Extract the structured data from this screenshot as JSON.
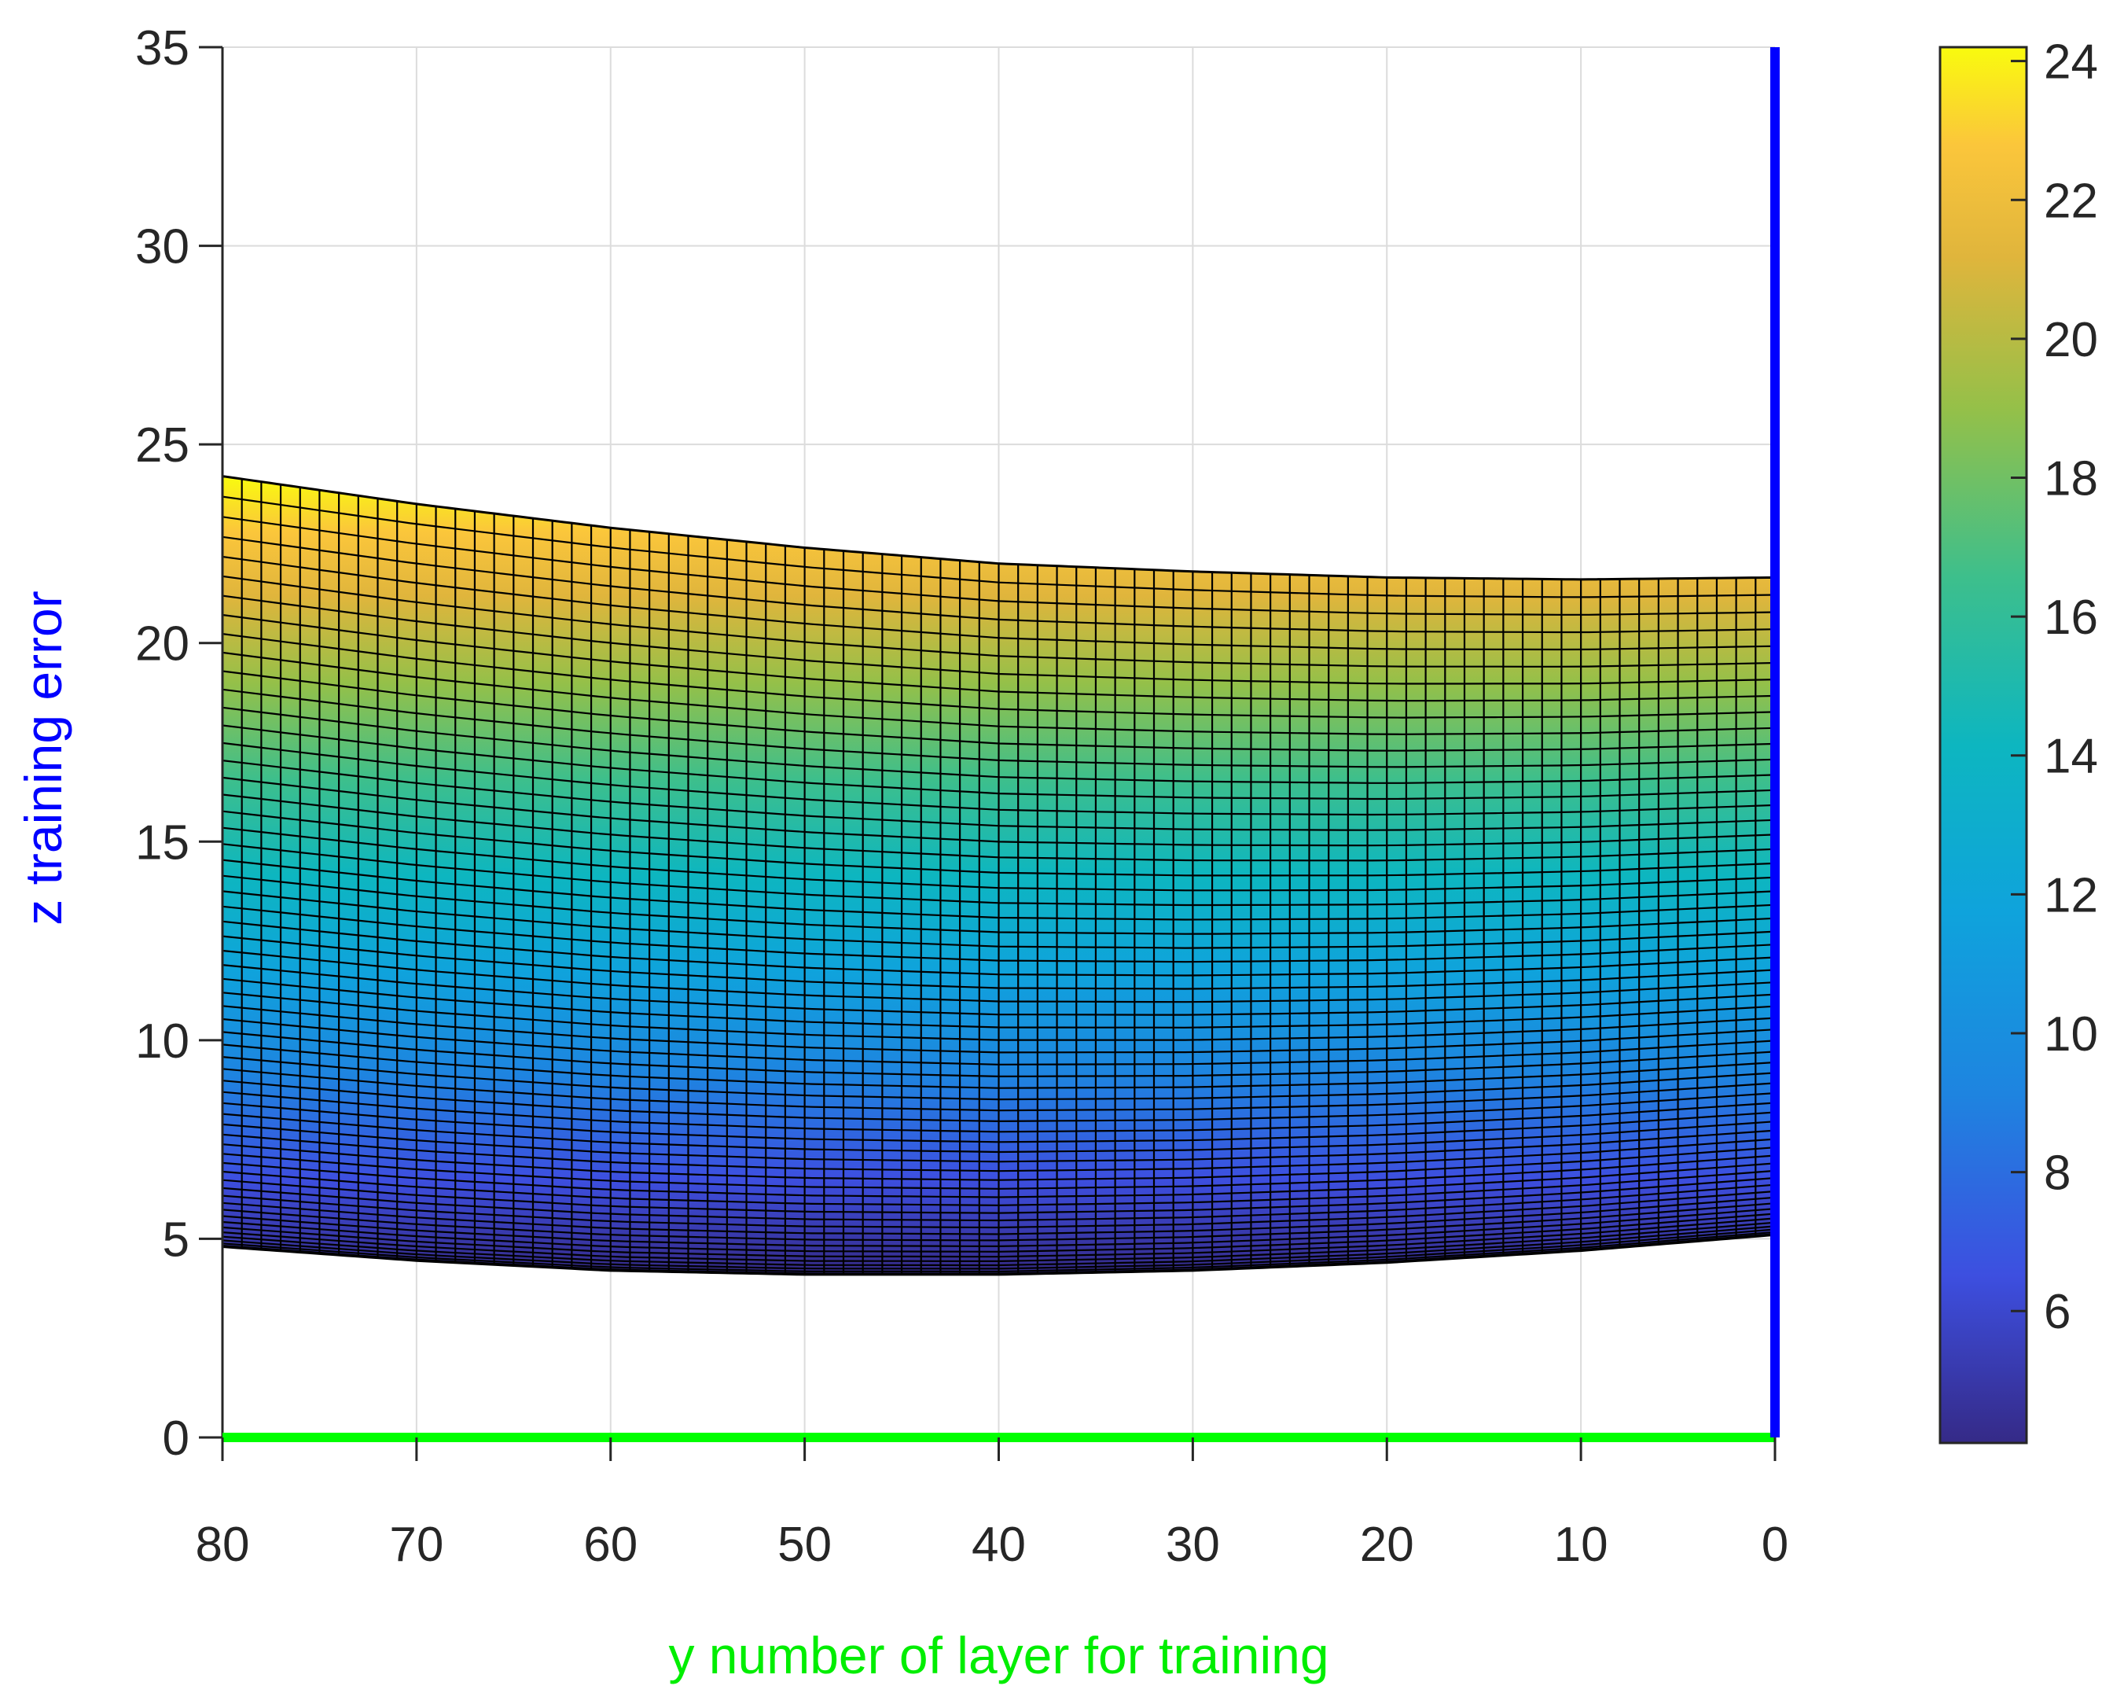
{
  "chart_data": {
    "type": "surface",
    "view": "side projection (y vs z)",
    "xlabel": "y number of layer for training",
    "ylabel": "z training error",
    "xlim": [
      80,
      0
    ],
    "ylim": [
      0,
      35
    ],
    "xticks": [
      "80",
      "70",
      "60",
      "50",
      "40",
      "30",
      "20",
      "10",
      "0"
    ],
    "yticks": [
      "0",
      "5",
      "10",
      "15",
      "20",
      "25",
      "30",
      "35"
    ],
    "grid": true,
    "surface_top_edge": {
      "y": [
        80,
        70,
        60,
        50,
        40,
        30,
        20,
        10,
        0
      ],
      "z": [
        24.2,
        23.5,
        22.9,
        22.4,
        22.0,
        21.8,
        21.65,
        21.6,
        21.65
      ]
    },
    "surface_bottom_edge": {
      "y": [
        80,
        70,
        60,
        50,
        40,
        30,
        20,
        10,
        0
      ],
      "z": [
        4.8,
        4.45,
        4.2,
        4.1,
        4.1,
        4.2,
        4.4,
        4.7,
        5.1
      ]
    },
    "colorbar": {
      "min": 4.1,
      "max": 24.2,
      "ticks": [
        "6",
        "8",
        "10",
        "12",
        "14",
        "16",
        "18",
        "20",
        "22",
        "24"
      ],
      "colormap": "parula"
    },
    "axis_colors": {
      "x_axis_line": "#00ff00",
      "z_axis_line": "#0000ff",
      "xlabel": "#00ee00",
      "ylabel": "#0000ff"
    }
  }
}
